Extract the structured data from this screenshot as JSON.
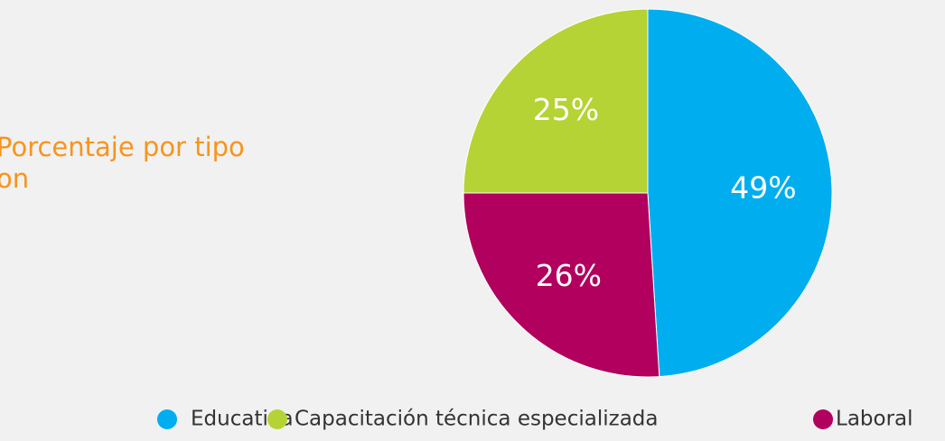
{
  "chart_data": {
    "type": "pie",
    "title_lines": [
      "Porcentaje por tipo",
      "on"
    ],
    "categories": [
      "Educativa",
      "Capacitación técnica especializada",
      "Laboral"
    ],
    "values": [
      49,
      25,
      26
    ],
    "value_labels": [
      "49%",
      "25%",
      "26%"
    ],
    "colors": [
      "#00aeef",
      "#b5d334",
      "#b1005d"
    ],
    "legend": "bottom"
  }
}
